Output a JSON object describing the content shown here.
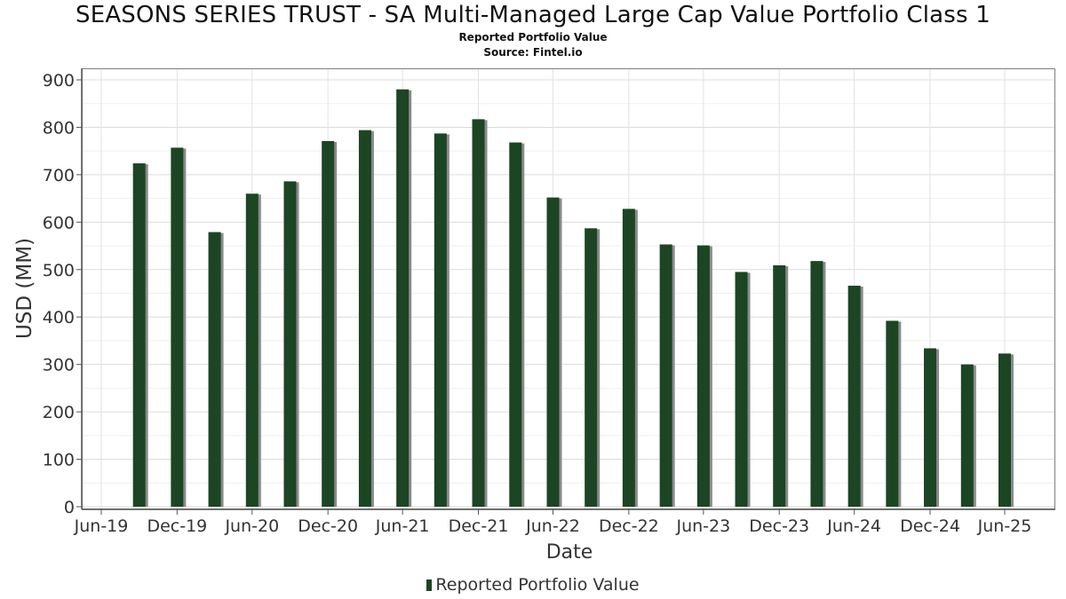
{
  "title": "SEASONS SERIES TRUST - SA Multi-Managed Large Cap Value Portfolio Class 1",
  "subtitle": "Reported Portfolio Value",
  "source": "Source: Fintel.io",
  "chart_data": {
    "type": "bar",
    "title": "SEASONS SERIES TRUST - SA Multi-Managed Large Cap Value Portfolio Class 1",
    "xlabel": "Date",
    "ylabel": "USD (MM)",
    "ylim": [
      0,
      920
    ],
    "yticks": [
      0,
      100,
      200,
      300,
      400,
      500,
      600,
      700,
      800,
      900
    ],
    "xlim": [
      "2019-06-01",
      "2025-10-01"
    ],
    "xticks": [
      {
        "label": "Jun-19",
        "date": "2019-06-30"
      },
      {
        "label": "Dec-19",
        "date": "2019-12-31"
      },
      {
        "label": "Jun-20",
        "date": "2020-06-30"
      },
      {
        "label": "Dec-20",
        "date": "2020-12-31"
      },
      {
        "label": "Jun-21",
        "date": "2021-06-30"
      },
      {
        "label": "Dec-21",
        "date": "2021-12-31"
      },
      {
        "label": "Jun-22",
        "date": "2022-06-30"
      },
      {
        "label": "Dec-22",
        "date": "2022-12-31"
      },
      {
        "label": "Jun-23",
        "date": "2023-06-30"
      },
      {
        "label": "Dec-23",
        "date": "2023-12-31"
      },
      {
        "label": "Jun-24",
        "date": "2024-06-30"
      },
      {
        "label": "Dec-24",
        "date": "2024-12-31"
      },
      {
        "label": "Jun-25",
        "date": "2025-06-30"
      }
    ],
    "grid": true,
    "legend_position": "bottom",
    "series": [
      {
        "name": "Reported Portfolio Value",
        "color": "#1b4523",
        "points": [
          {
            "x": "2019-09-30",
            "y": 724
          },
          {
            "x": "2019-12-31",
            "y": 757
          },
          {
            "x": "2020-03-31",
            "y": 579
          },
          {
            "x": "2020-06-30",
            "y": 660
          },
          {
            "x": "2020-09-30",
            "y": 686
          },
          {
            "x": "2020-12-31",
            "y": 771
          },
          {
            "x": "2021-03-31",
            "y": 794
          },
          {
            "x": "2021-06-30",
            "y": 880
          },
          {
            "x": "2021-09-30",
            "y": 787
          },
          {
            "x": "2021-12-31",
            "y": 817
          },
          {
            "x": "2022-03-31",
            "y": 768
          },
          {
            "x": "2022-06-30",
            "y": 652
          },
          {
            "x": "2022-09-30",
            "y": 587
          },
          {
            "x": "2022-12-31",
            "y": 628
          },
          {
            "x": "2023-03-31",
            "y": 553
          },
          {
            "x": "2023-06-30",
            "y": 551
          },
          {
            "x": "2023-09-30",
            "y": 495
          },
          {
            "x": "2023-12-31",
            "y": 509
          },
          {
            "x": "2024-03-31",
            "y": 518
          },
          {
            "x": "2024-06-30",
            "y": 466
          },
          {
            "x": "2024-09-30",
            "y": 392
          },
          {
            "x": "2024-12-31",
            "y": 334
          },
          {
            "x": "2025-03-31",
            "y": 300
          },
          {
            "x": "2025-06-30",
            "y": 323
          }
        ]
      }
    ]
  }
}
